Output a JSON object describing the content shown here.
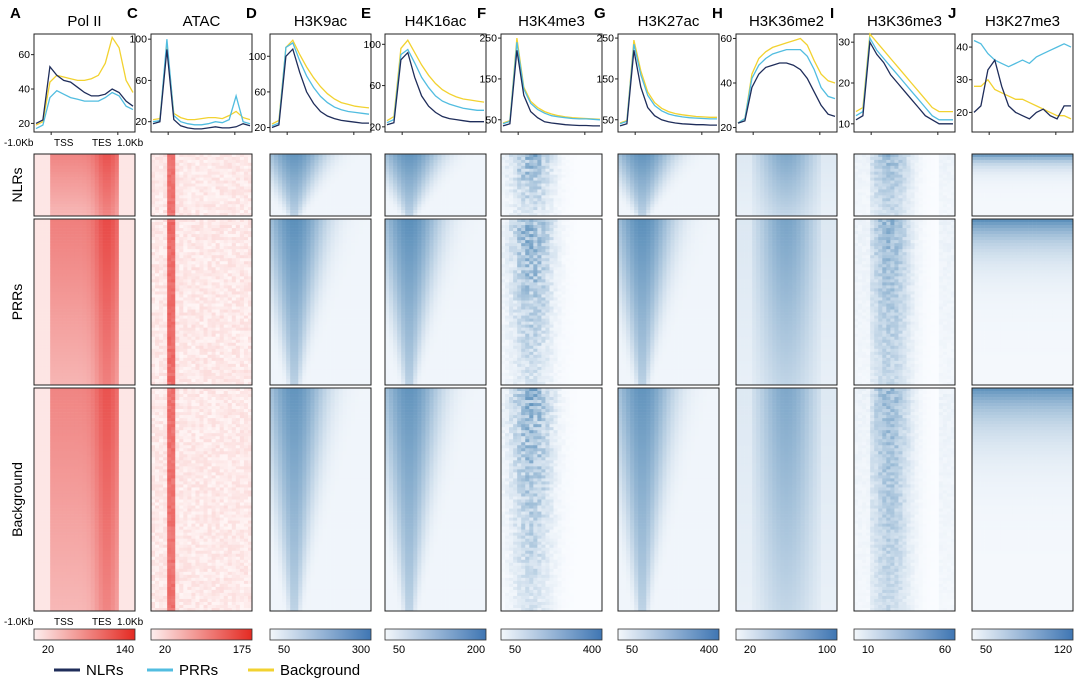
{
  "legend": [
    {
      "name": "NLRs",
      "color": "#1f2d5a"
    },
    {
      "name": "PRRs",
      "color": "#52bde0"
    },
    {
      "name": "Background",
      "color": "#f2d230"
    }
  ],
  "row_labels": [
    "NLRs",
    "PRRs",
    "Background"
  ],
  "x_labels": {
    "start": "-1.0Kb",
    "tss": "TSS",
    "tes": "TES",
    "end": "1.0Kb"
  },
  "panels": [
    {
      "letter": "A",
      "title": "Pol II",
      "colormap": "red",
      "profile_ticks": [
        "60",
        "40",
        "20"
      ],
      "colorbar_ticks": [
        "20",
        "140"
      ],
      "heat_kind": "body"
    },
    {
      "letter": "C",
      "title": "ATAC",
      "colormap": "red",
      "profile_ticks": [
        "100",
        "60",
        "20"
      ],
      "colorbar_ticks": [
        "20",
        "175"
      ],
      "heat_kind": "sharp"
    },
    {
      "letter": "D",
      "title": "H3K9ac",
      "colormap": "blue",
      "profile_ticks": [
        "100",
        "60",
        "20"
      ],
      "colorbar_ticks": [
        "50",
        "300"
      ],
      "heat_kind": "peak"
    },
    {
      "letter": "E",
      "title": "H4K16ac",
      "colormap": "blue",
      "profile_ticks": [
        "100",
        "60",
        "20"
      ],
      "colorbar_ticks": [
        "50",
        "200"
      ],
      "heat_kind": "peak"
    },
    {
      "letter": "F",
      "title": "H3K4me3",
      "colormap": "blue",
      "profile_ticks": [
        "250",
        "150",
        "50"
      ],
      "colorbar_ticks": [
        "50",
        "400"
      ],
      "heat_kind": "sparse"
    },
    {
      "letter": "G",
      "title": "H3K27ac",
      "colormap": "blue",
      "profile_ticks": [
        "250",
        "150",
        "50"
      ],
      "colorbar_ticks": [
        "50",
        "400"
      ],
      "heat_kind": "peak"
    },
    {
      "letter": "H",
      "title": "H3K36me2",
      "colormap": "blue",
      "profile_ticks": [
        "60",
        "40",
        "20"
      ],
      "colorbar_ticks": [
        "20",
        "100"
      ],
      "heat_kind": "broad"
    },
    {
      "letter": "I",
      "title": "H3K36me3",
      "colormap": "blue",
      "profile_ticks": [
        "30",
        "20",
        "10"
      ],
      "colorbar_ticks": [
        "10",
        "60"
      ],
      "heat_kind": "broad3"
    },
    {
      "letter": "J",
      "title": "H3K27me3",
      "colormap": "blue",
      "profile_ticks": [
        "40",
        "30",
        "20"
      ],
      "colorbar_ticks": [
        "50",
        "120"
      ],
      "heat_kind": "top"
    }
  ],
  "chart_data": {
    "type": "line",
    "x": [
      "-1.0Kb",
      "TSS",
      "TES",
      "1.0Kb"
    ],
    "series_names": [
      "NLRs",
      "PRRs",
      "Background"
    ],
    "profiles": [
      {
        "panel": "Pol II",
        "ylim": [
          15,
          72
        ],
        "series": [
          {
            "name": "NLRs",
            "values": [
              20,
              22,
              53,
              48,
              45,
              44,
              41,
              38,
              36,
              36,
              37,
              40,
              38,
              33,
              30
            ]
          },
          {
            "name": "PRRs",
            "values": [
              17,
              19,
              35,
              39,
              37,
              35,
              34,
              33,
              33,
              33,
              35,
              38,
              36,
              30,
              28
            ]
          },
          {
            "name": "Background",
            "values": [
              19,
              21,
              44,
              48,
              47,
              46,
              45,
              45,
              46,
              48,
              55,
              70,
              64,
              45,
              38
            ]
          }
        ]
      },
      {
        "panel": "ATAC",
        "ylim": [
          10,
          105
        ],
        "series": [
          {
            "name": "NLRs",
            "values": [
              18,
              20,
              90,
              22,
              16,
              14,
              13,
              13,
              14,
              15,
              14,
              14,
              15,
              18,
              16
            ]
          },
          {
            "name": "PRRs",
            "values": [
              20,
              21,
              100,
              26,
              20,
              18,
              17,
              17,
              18,
              20,
              19,
              22,
              45,
              20,
              18
            ]
          },
          {
            "name": "Background",
            "values": [
              22,
              23,
              95,
              28,
              24,
              22,
              22,
              23,
              24,
              24,
              23,
              26,
              30,
              24,
              22
            ]
          }
        ]
      },
      {
        "panel": "H3K9ac",
        "ylim": [
          15,
          125
        ],
        "series": [
          {
            "name": "NLRs",
            "values": [
              20,
              23,
              100,
              108,
              82,
              60,
              47,
              38,
              33,
              30,
              28,
              27,
              26,
              25,
              25
            ]
          },
          {
            "name": "PRRs",
            "values": [
              22,
              25,
              110,
              115,
              95,
              78,
              65,
              55,
              48,
              43,
              40,
              38,
              37,
              36,
              35
            ]
          },
          {
            "name": "Background",
            "values": [
              24,
              28,
              110,
              118,
              102,
              88,
              76,
              66,
              58,
              52,
              48,
              46,
              44,
              43,
              42
            ]
          }
        ]
      },
      {
        "panel": "H4K16ac",
        "ylim": [
          15,
          110
        ],
        "series": [
          {
            "name": "NLRs",
            "values": [
              22,
              24,
              85,
              92,
              68,
              50,
              40,
              34,
              30,
              28,
              27,
              26,
              25,
              25,
              25
            ]
          },
          {
            "name": "PRRs",
            "values": [
              24,
              27,
              90,
              95,
              82,
              68,
              58,
              50,
              45,
              42,
              40,
              38,
              37,
              36,
              36
            ]
          },
          {
            "name": "Background",
            "values": [
              26,
              30,
              96,
              104,
              92,
              80,
              70,
              62,
              56,
              52,
              49,
              47,
              46,
              45,
              44
            ]
          }
        ]
      },
      {
        "panel": "H3K4me3",
        "ylim": [
          20,
          260
        ],
        "series": [
          {
            "name": "NLRs",
            "values": [
              35,
              40,
              220,
              110,
              70,
              55,
              45,
              42,
              40,
              38,
              37,
              36,
              36,
              35,
              35
            ]
          },
          {
            "name": "PRRs",
            "values": [
              40,
              46,
              240,
              125,
              90,
              75,
              66,
              60,
              57,
              55,
              53,
              52,
              52,
              51,
              50
            ]
          },
          {
            "name": "Background",
            "values": [
              42,
              48,
              250,
              130,
              95,
              80,
              70,
              64,
              60,
              57,
              55,
              54,
              53,
              52,
              51
            ]
          }
        ]
      },
      {
        "panel": "H3K27ac",
        "ylim": [
          20,
          260
        ],
        "series": [
          {
            "name": "NLRs",
            "values": [
              35,
              40,
              220,
              130,
              80,
              60,
              50,
              45,
              42,
              40,
              39,
              38,
              38,
              37,
              37
            ]
          },
          {
            "name": "PRRs",
            "values": [
              40,
              46,
              235,
              160,
              110,
              85,
              72,
              64,
              60,
              57,
              55,
              54,
              53,
              52,
              52
            ]
          },
          {
            "name": "Background",
            "values": [
              42,
              48,
              245,
              170,
              118,
              92,
              78,
              70,
              65,
              62,
              60,
              58,
              57,
              56,
              56
            ]
          }
        ]
      },
      {
        "panel": "H3K36me2",
        "ylim": [
          18,
          62
        ],
        "series": [
          {
            "name": "NLRs",
            "values": [
              22,
              23,
              38,
              44,
              47,
              48,
              49,
              49,
              48,
              46,
              42,
              36,
              30,
              26,
              25
            ]
          },
          {
            "name": "PRRs",
            "values": [
              22,
              24,
              42,
              48,
              51,
              53,
              54,
              55,
              55,
              55,
              52,
              46,
              38,
              34,
              33
            ]
          },
          {
            "name": "Background",
            "values": [
              22,
              24,
              44,
              51,
              54,
              56,
              57,
              58,
              59,
              60,
              57,
              50,
              44,
              41,
              40
            ]
          }
        ]
      },
      {
        "panel": "H3K36me3",
        "ylim": [
          8,
          32
        ],
        "series": [
          {
            "name": "NLRs",
            "values": [
              11,
              12,
              30,
              27,
              25,
              22,
              20,
              18,
              16,
              14,
              12,
              11,
              10,
              10,
              10
            ]
          },
          {
            "name": "PRRs",
            "values": [
              12,
              13,
              31,
              28,
              26,
              24,
              22,
              20,
              18,
              16,
              14,
              12,
              11,
              11,
              11
            ]
          },
          {
            "name": "Background",
            "values": [
              13,
              14,
              32,
              30,
              28,
              26,
              24,
              22,
              20,
              18,
              16,
              14,
              13,
              13,
              13
            ]
          }
        ]
      },
      {
        "panel": "H3K27me3",
        "ylim": [
          14,
          44
        ],
        "series": [
          {
            "name": "NLRs",
            "values": [
              20,
              22,
              33,
              36,
              28,
              22,
              20,
              19,
              18,
              20,
              21,
              19,
              18,
              22,
              22
            ]
          },
          {
            "name": "PRRs",
            "values": [
              42,
              41,
              38,
              36,
              35,
              34,
              35,
              36,
              35,
              37,
              38,
              39,
              40,
              41,
              40
            ]
          },
          {
            "name": "Background",
            "values": [
              28,
              28,
              30,
              27,
              26,
              25,
              24,
              24,
              23,
              22,
              21,
              20,
              19,
              19,
              18
            ]
          }
        ]
      }
    ]
  }
}
